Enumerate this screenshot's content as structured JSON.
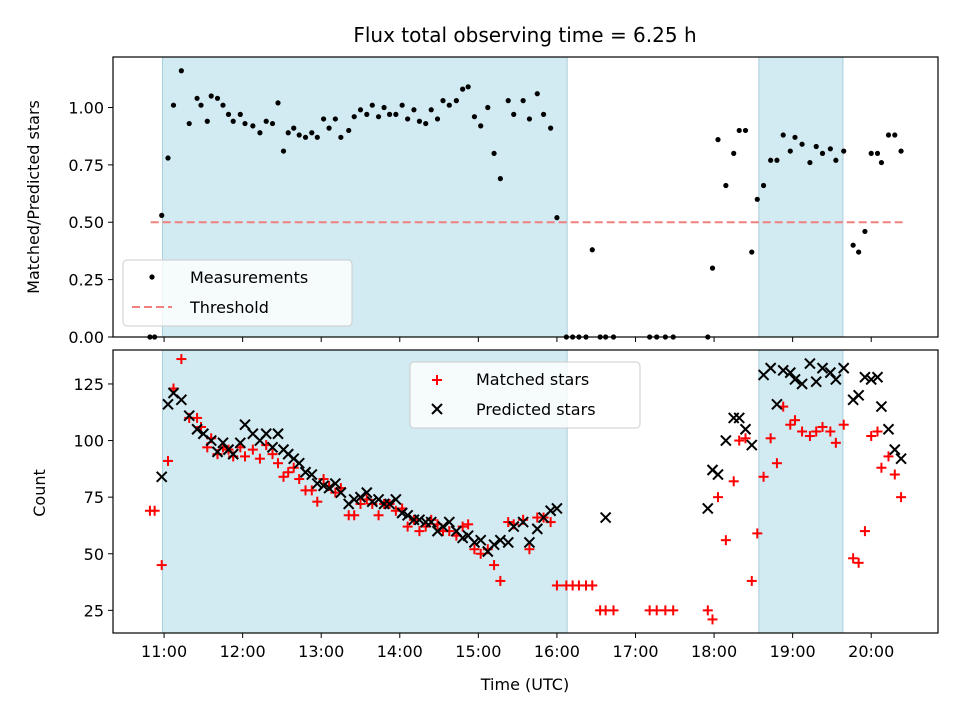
{
  "title": "Flux total observing time = 6.25 h",
  "colors": {
    "shade": "#add8e6",
    "shade_edge": "#a8cfdc",
    "marker": "#000000",
    "matched": "#ff0000",
    "predicted": "#000000",
    "threshold": "#f08080"
  },
  "chart_data": [
    {
      "type": "scatter",
      "name": "ratio-panel",
      "ylabel": "Matched/Predicted stars",
      "xlabel": "",
      "xlim": [
        10.35,
        20.85
      ],
      "ylim": [
        0,
        1.22
      ],
      "yticks": [
        0.0,
        0.25,
        0.5,
        0.75,
        1.0
      ],
      "ytick_labels": [
        "0.00",
        "0.25",
        "0.50",
        "0.75",
        "1.00"
      ],
      "shaded_intervals": [
        [
          10.98,
          16.13
        ],
        [
          18.57,
          19.64
        ]
      ],
      "legend": {
        "position": "lower-left",
        "entries": [
          "Measurements",
          "Threshold"
        ]
      },
      "threshold": {
        "name": "Threshold",
        "y": 0.5,
        "x_range": [
          10.83,
          20.4
        ]
      },
      "series": [
        {
          "name": "Measurements",
          "marker": "dot",
          "x": [
            10.82,
            10.88,
            10.97,
            11.05,
            11.12,
            11.22,
            11.32,
            11.42,
            11.47,
            11.55,
            11.6,
            11.68,
            11.75,
            11.82,
            11.88,
            11.97,
            12.03,
            12.13,
            12.22,
            12.3,
            12.38,
            12.45,
            12.52,
            12.58,
            12.65,
            12.72,
            12.8,
            12.88,
            12.95,
            13.03,
            13.1,
            13.18,
            13.25,
            13.35,
            13.42,
            13.5,
            13.58,
            13.65,
            13.73,
            13.8,
            13.87,
            13.95,
            14.03,
            14.1,
            14.18,
            14.25,
            14.33,
            14.4,
            14.48,
            14.55,
            14.63,
            14.72,
            14.8,
            14.87,
            14.95,
            15.03,
            15.12,
            15.2,
            15.28,
            15.38,
            15.45,
            15.57,
            15.65,
            15.75,
            15.83,
            15.92,
            16.0,
            16.12,
            16.2,
            16.28,
            16.37,
            16.45,
            16.55,
            16.62,
            16.72,
            17.18,
            17.27,
            17.38,
            17.48,
            17.92,
            17.98,
            18.05,
            18.15,
            18.25,
            18.32,
            18.4,
            18.48,
            18.55,
            18.63,
            18.72,
            18.8,
            18.88,
            18.97,
            19.03,
            19.12,
            19.22,
            19.3,
            19.38,
            19.48,
            19.55,
            19.65,
            19.77,
            19.84,
            19.92,
            20.0,
            20.08,
            20.13,
            20.22,
            20.3,
            20.38
          ],
          "y": [
            0.0,
            0.0,
            0.53,
            0.78,
            1.01,
            1.16,
            0.93,
            1.04,
            1.01,
            0.94,
            1.05,
            1.04,
            1.01,
            0.97,
            0.94,
            0.97,
            0.93,
            0.92,
            0.89,
            0.94,
            0.93,
            1.02,
            0.81,
            0.89,
            0.91,
            0.88,
            0.87,
            0.89,
            0.87,
            0.95,
            0.91,
            0.95,
            0.87,
            0.9,
            0.96,
            0.99,
            0.97,
            1.01,
            0.96,
            1.0,
            0.97,
            0.97,
            1.01,
            0.95,
            0.99,
            0.94,
            0.93,
            0.99,
            0.95,
            1.03,
            1.01,
            1.03,
            1.08,
            1.09,
            0.96,
            0.92,
            1.0,
            0.8,
            0.69,
            1.03,
            0.97,
            1.03,
            0.95,
            1.06,
            0.97,
            0.91,
            0.52,
            0.0,
            0.0,
            0.0,
            0.0,
            0.38,
            0.0,
            0.0,
            0.0,
            0.0,
            0.0,
            0.0,
            0.0,
            0.0,
            0.3,
            0.86,
            0.66,
            0.8,
            0.9,
            0.9,
            0.37,
            0.6,
            0.66,
            0.77,
            0.77,
            0.88,
            0.81,
            0.87,
            0.84,
            0.76,
            0.83,
            0.8,
            0.82,
            0.77,
            0.81,
            0.4,
            0.37,
            0.46,
            0.8,
            0.8,
            0.76,
            0.88,
            0.88,
            0.81
          ]
        }
      ]
    },
    {
      "type": "scatter",
      "name": "count-panel",
      "ylabel": "Count",
      "xlabel": "Time (UTC)",
      "xlim": [
        10.35,
        20.85
      ],
      "ylim": [
        15,
        140
      ],
      "yticks": [
        25,
        50,
        75,
        100,
        125
      ],
      "ytick_labels": [
        "25",
        "50",
        "75",
        "100",
        "125"
      ],
      "xticks": [
        11,
        12,
        13,
        14,
        15,
        16,
        17,
        18,
        19,
        20
      ],
      "xtick_labels": [
        "11:00",
        "12:00",
        "13:00",
        "14:00",
        "15:00",
        "16:00",
        "17:00",
        "18:00",
        "19:00",
        "20:00"
      ],
      "shaded_intervals": [
        [
          10.98,
          16.13
        ],
        [
          18.57,
          19.64
        ]
      ],
      "legend": {
        "position": "top-center",
        "entries": [
          "Matched stars",
          "Predicted stars"
        ]
      },
      "series": [
        {
          "name": "Matched stars",
          "marker": "plus",
          "x": [
            10.82,
            10.88,
            10.97,
            11.05,
            11.12,
            11.22,
            11.32,
            11.42,
            11.47,
            11.55,
            11.6,
            11.68,
            11.75,
            11.82,
            11.88,
            11.97,
            12.03,
            12.13,
            12.22,
            12.3,
            12.38,
            12.45,
            12.52,
            12.58,
            12.65,
            12.72,
            12.8,
            12.88,
            12.95,
            13.03,
            13.1,
            13.18,
            13.25,
            13.35,
            13.42,
            13.5,
            13.58,
            13.65,
            13.73,
            13.8,
            13.87,
            13.95,
            14.03,
            14.1,
            14.18,
            14.25,
            14.33,
            14.4,
            14.48,
            14.55,
            14.63,
            14.72,
            14.8,
            14.87,
            14.95,
            15.03,
            15.12,
            15.2,
            15.28,
            15.38,
            15.45,
            15.57,
            15.65,
            15.75,
            15.83,
            15.92,
            16.0,
            16.12,
            16.2,
            16.28,
            16.37,
            16.45,
            16.55,
            16.62,
            16.72,
            17.18,
            17.27,
            17.38,
            17.48,
            17.92,
            17.98,
            18.05,
            18.15,
            18.25,
            18.32,
            18.4,
            18.48,
            18.55,
            18.63,
            18.72,
            18.8,
            18.88,
            18.97,
            19.03,
            19.12,
            19.22,
            19.3,
            19.38,
            19.48,
            19.55,
            19.65,
            19.77,
            19.84,
            19.92,
            20.0,
            20.08,
            20.13,
            20.22,
            20.3,
            20.38
          ],
          "y": [
            69,
            69,
            45,
            91,
            123,
            136,
            110,
            110,
            106,
            97,
            101,
            94,
            97,
            96,
            93,
            97,
            93,
            96,
            92,
            98,
            94,
            90,
            84,
            86,
            88,
            83,
            78,
            78,
            73,
            83,
            80,
            77,
            79,
            67,
            67,
            72,
            74,
            72,
            67,
            72,
            72,
            69,
            70,
            62,
            65,
            60,
            62,
            65,
            63,
            60,
            60,
            58,
            62,
            63,
            52,
            50,
            52,
            45,
            38,
            64,
            63,
            65,
            52,
            66,
            66,
            64,
            36,
            36,
            36,
            36,
            36,
            36,
            25,
            25,
            25,
            25,
            25,
            25,
            25,
            25,
            21,
            75,
            56,
            82,
            100,
            101,
            38,
            59,
            84,
            101,
            90,
            115,
            107,
            109,
            104,
            102,
            104,
            106,
            104,
            99,
            107,
            48,
            46,
            60,
            102,
            104,
            88,
            93,
            85,
            75
          ]
        },
        {
          "name": "Predicted stars",
          "marker": "x",
          "x": [
            10.97,
            11.05,
            11.12,
            11.22,
            11.32,
            11.42,
            11.5,
            11.6,
            11.68,
            11.75,
            11.82,
            11.88,
            11.97,
            12.03,
            12.13,
            12.22,
            12.3,
            12.38,
            12.45,
            12.52,
            12.58,
            12.65,
            12.72,
            12.8,
            12.88,
            12.95,
            13.03,
            13.1,
            13.18,
            13.25,
            13.35,
            13.42,
            13.5,
            13.58,
            13.65,
            13.73,
            13.8,
            13.87,
            13.95,
            14.03,
            14.1,
            14.18,
            14.25,
            14.33,
            14.4,
            14.48,
            14.55,
            14.63,
            14.72,
            14.8,
            14.87,
            14.95,
            15.03,
            15.12,
            15.2,
            15.28,
            15.38,
            15.45,
            15.57,
            15.65,
            15.75,
            15.83,
            15.92,
            16.0,
            16.62,
            17.92,
            17.98,
            18.05,
            18.15,
            18.25,
            18.32,
            18.4,
            18.48,
            18.63,
            18.72,
            18.8,
            18.88,
            18.97,
            19.03,
            19.12,
            19.22,
            19.3,
            19.38,
            19.48,
            19.55,
            19.65,
            19.77,
            19.84,
            19.92,
            20.0,
            20.08,
            20.13,
            20.22,
            20.3,
            20.38
          ],
          "y": [
            84,
            116,
            121,
            118,
            111,
            105,
            103,
            100,
            95,
            99,
            96,
            94,
            99,
            107,
            103,
            100,
            103,
            97,
            103,
            96,
            94,
            92,
            90,
            86,
            85,
            81,
            80,
            79,
            81,
            77,
            72,
            74,
            75,
            77,
            73,
            74,
            72,
            72,
            74,
            68,
            67,
            65,
            65,
            64,
            64,
            60,
            62,
            64,
            60,
            57,
            58,
            55,
            56,
            51,
            54,
            56,
            55,
            62,
            64,
            55,
            61,
            66,
            69,
            70,
            66,
            70,
            87,
            85,
            100,
            110,
            110,
            105,
            98,
            129,
            132,
            116,
            131,
            130,
            127,
            125,
            134,
            126,
            132,
            130,
            127,
            132,
            118,
            120,
            128,
            127,
            128,
            115,
            105,
            96,
            92
          ]
        }
      ]
    }
  ]
}
